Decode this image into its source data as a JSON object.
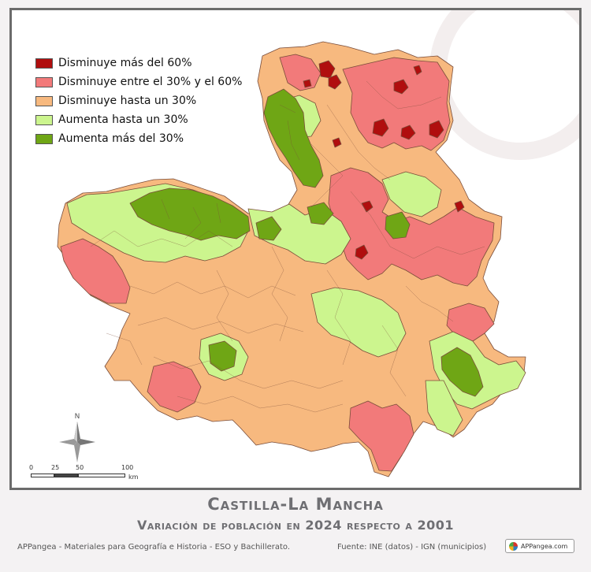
{
  "legend": {
    "items": [
      {
        "label": "Disminuye más del 60%",
        "color": "#b00e0e"
      },
      {
        "label": "Disminuye entre el 30% y el 60%",
        "color": "#f27a7a"
      },
      {
        "label": "Disminuye hasta un 30%",
        "color": "#f7b97f"
      },
      {
        "label": "Aumenta hasta un 30%",
        "color": "#ccf58e"
      },
      {
        "label": "Aumenta más del 30%",
        "color": "#6fa615"
      }
    ]
  },
  "compass": {
    "north": "N"
  },
  "scale": {
    "ticks": [
      "0",
      "25",
      "50",
      "100"
    ],
    "unit": "km"
  },
  "title": "Castilla-La Mancha",
  "subtitle": "Variación de población en 2024 respecto a 2001",
  "footer": {
    "credits": "APPangea - Materiales para Geografía e Historia - ESO y Bachillerato.",
    "source": "Fuente: INE (datos) - IGN (municipios)",
    "badge": "APPangea.com"
  }
}
